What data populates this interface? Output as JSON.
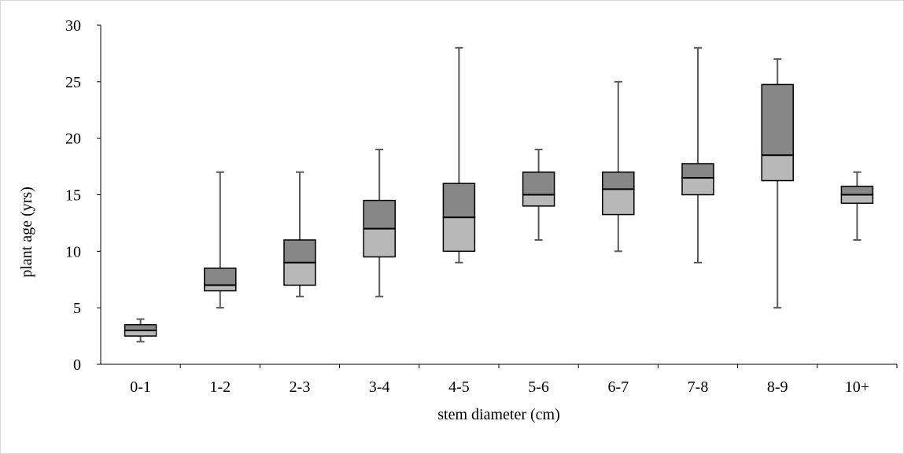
{
  "chart_data": {
    "type": "boxplot",
    "xlabel": "stem diameter (cm)",
    "ylabel": "plant age (yrs)",
    "ylim": [
      0,
      30
    ],
    "yticks": [
      "0",
      "5",
      "10",
      "15",
      "20",
      "25",
      "30"
    ],
    "grid": false,
    "legend": "none",
    "colors": {
      "upper_box": "#878787",
      "lower_box": "#b8b8b8",
      "whisker": "#595959",
      "outline": "#000000"
    },
    "categories": [
      "0-1",
      "1-2",
      "2-3",
      "3-4",
      "4-5",
      "5-6",
      "6-7",
      "7-8",
      "8-9",
      "10+"
    ],
    "boxes": [
      {
        "min": 2,
        "q1": 2.5,
        "median": 3,
        "q3": 3.5,
        "max": 4
      },
      {
        "min": 5,
        "q1": 6.5,
        "median": 7,
        "q3": 8.5,
        "max": 17
      },
      {
        "min": 6,
        "q1": 7,
        "median": 9,
        "q3": 11,
        "max": 17
      },
      {
        "min": 6,
        "q1": 9.5,
        "median": 12,
        "q3": 14.5,
        "max": 19
      },
      {
        "min": 9,
        "q1": 10,
        "median": 13,
        "q3": 16,
        "max": 28
      },
      {
        "min": 11,
        "q1": 14,
        "median": 15,
        "q3": 17,
        "max": 19
      },
      {
        "min": 10,
        "q1": 13.25,
        "median": 15.5,
        "q3": 17,
        "max": 25
      },
      {
        "min": 9,
        "q1": 15,
        "median": 16.5,
        "q3": 17.75,
        "max": 28
      },
      {
        "min": 5,
        "q1": 16.25,
        "median": 18.5,
        "q3": 24.75,
        "max": 27
      },
      {
        "min": 11,
        "q1": 14.25,
        "median": 15,
        "q3": 15.75,
        "max": 17
      }
    ]
  }
}
